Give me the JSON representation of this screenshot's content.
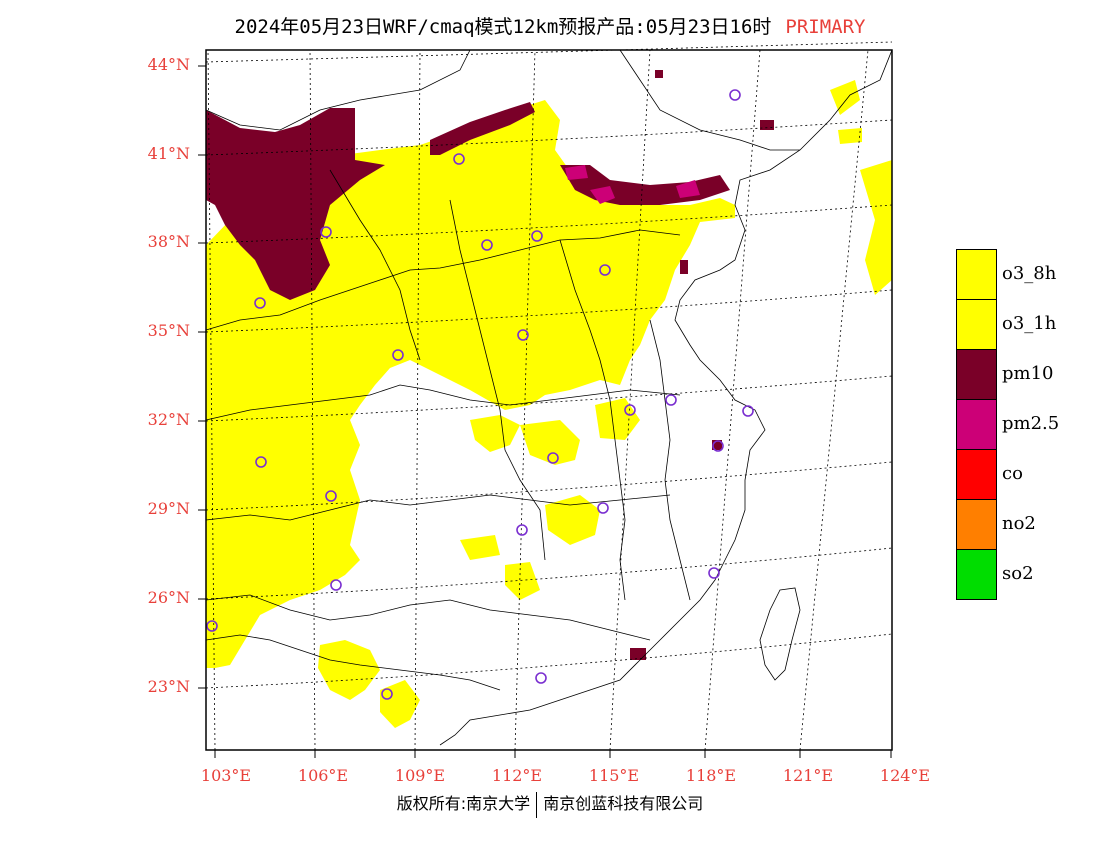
{
  "title": {
    "text": "2024年05月23日WRF/cmaq模式12km预报产品:05月23日16时",
    "tag": "PRIMARY"
  },
  "colors": {
    "tag": "#e8403a",
    "o3_8h": "#ffff00",
    "o3_1h": "#ffff00",
    "pm10": "#7a0028",
    "pm25": "#cc0077",
    "co": "#ff0000",
    "no2": "#ff7f00",
    "so2": "#00dd00",
    "station_marker": "#7a2fd0"
  },
  "axes": {
    "lat_labels": [
      "44°N",
      "41°N",
      "38°N",
      "35°N",
      "32°N",
      "29°N",
      "26°N",
      "23°N"
    ],
    "lon_labels": [
      "103°E",
      "106°E",
      "109°E",
      "112°E",
      "115°E",
      "118°E",
      "121°E",
      "124°E"
    ]
  },
  "legend": [
    {
      "label": "o3_8h",
      "color": "#ffff00"
    },
    {
      "label": "o3_1h",
      "color": "#ffff00"
    },
    {
      "label": "pm10",
      "color": "#7a0028"
    },
    {
      "label": "pm2.5",
      "color": "#cc0077"
    },
    {
      "label": "co",
      "color": "#ff0000"
    },
    {
      "label": "no2",
      "color": "#ff7f00"
    },
    {
      "label": "so2",
      "color": "#00dd00"
    }
  ],
  "footer": {
    "left": "版权所有:南京大学",
    "right": "南京创蓝科技有限公司"
  }
}
